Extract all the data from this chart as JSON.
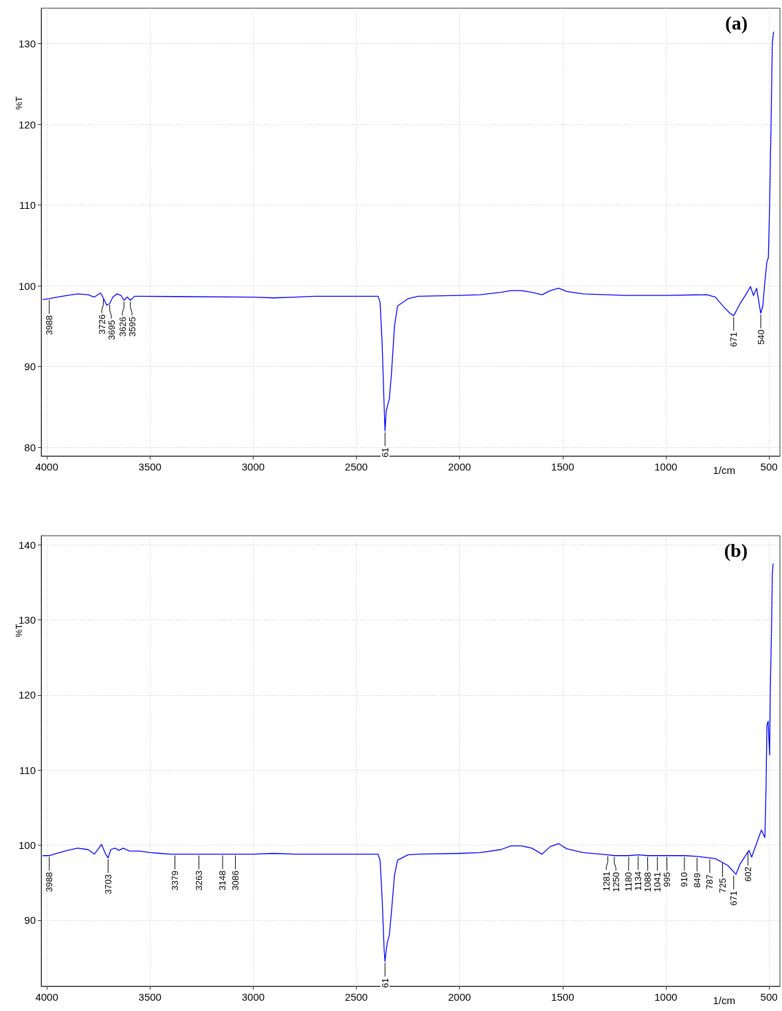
{
  "chart_data": [
    {
      "type": "line",
      "title": "(a)",
      "xlabel": "1/cm",
      "ylabel": "%T",
      "xlim": [
        4027,
        447
      ],
      "ylim": [
        78.9,
        134.4
      ],
      "xticks": [
        4000,
        3500,
        3000,
        2500,
        2000,
        1500,
        1000,
        500
      ],
      "yticks": [
        80,
        90,
        100,
        110,
        120,
        130
      ],
      "grid": true,
      "series": [
        {
          "color": "#0000ff",
          "x": [
            4020,
            3988,
            3950,
            3900,
            3850,
            3800,
            3770,
            3740,
            3726,
            3710,
            3695,
            3680,
            3660,
            3640,
            3626,
            3610,
            3595,
            3575,
            3550,
            3000,
            2900,
            2800,
            2700,
            2600,
            2395,
            2385,
            2375,
            2365,
            2361,
            2355,
            2350,
            2340,
            2330,
            2315,
            2300,
            2250,
            2200,
            2000,
            1900,
            1800,
            1750,
            1700,
            1650,
            1600,
            1560,
            1520,
            1480,
            1400,
            1200,
            1000,
            800,
            760,
            720,
            690,
            671,
            640,
            610,
            590,
            575,
            560,
            548,
            540,
            530,
            520,
            510,
            503,
            497,
            490,
            484,
            478
          ],
          "values": [
            98.3,
            98.4,
            98.6,
            98.8,
            99.0,
            98.9,
            98.6,
            99.1,
            98.5,
            97.6,
            97.8,
            98.6,
            99.0,
            98.8,
            98.2,
            98.6,
            98.2,
            98.7,
            98.7,
            98.6,
            98.5,
            98.6,
            98.7,
            98.7,
            98.7,
            98.0,
            93.0,
            85.0,
            82.0,
            84.5,
            85.0,
            86.0,
            89.0,
            95.0,
            97.5,
            98.4,
            98.7,
            98.8,
            98.9,
            99.2,
            99.4,
            99.4,
            99.2,
            98.9,
            99.4,
            99.7,
            99.3,
            99.0,
            98.8,
            98.8,
            98.9,
            98.6,
            97.4,
            96.6,
            96.3,
            97.8,
            99.0,
            99.9,
            98.8,
            99.7,
            97.8,
            96.6,
            97.5,
            100.5,
            103.0,
            103.5,
            110.0,
            120.0,
            130.0,
            131.5
          ]
        }
      ],
      "annotations": [
        {
          "text": "3988",
          "x": 3988,
          "y": 98.4
        },
        {
          "text": "3726",
          "x": 3726,
          "y": 98.5
        },
        {
          "text": "3695",
          "x": 3695,
          "y": 97.8
        },
        {
          "text": "3626",
          "x": 3626,
          "y": 98.2
        },
        {
          "text": "3595",
          "x": 3595,
          "y": 98.2
        },
        {
          "text": "61",
          "x": 2361,
          "y": 82.0
        },
        {
          "text": "671",
          "x": 671,
          "y": 96.3
        },
        {
          "text": "540",
          "x": 540,
          "y": 96.6
        }
      ]
    },
    {
      "type": "line",
      "title": "(b)",
      "xlabel": "1/cm",
      "ylabel": "%T",
      "xlim": [
        4027,
        447
      ],
      "ylim": [
        81.2,
        141.2
      ],
      "xticks": [
        4000,
        3500,
        3000,
        2500,
        2000,
        1500,
        1000,
        500
      ],
      "yticks": [
        90,
        100,
        110,
        120,
        130,
        140
      ],
      "grid": true,
      "series": [
        {
          "color": "#0000ff",
          "x": [
            4020,
            3988,
            3950,
            3900,
            3850,
            3800,
            3770,
            3750,
            3735,
            3715,
            3703,
            3690,
            3670,
            3650,
            3630,
            3600,
            3550,
            3500,
            3450,
            3400,
            3000,
            2900,
            2800,
            2395,
            2385,
            2375,
            2365,
            2361,
            2355,
            2350,
            2340,
            2330,
            2315,
            2300,
            2250,
            2200,
            2000,
            1900,
            1800,
            1750,
            1700,
            1650,
            1600,
            1560,
            1520,
            1480,
            1400,
            1281,
            1250,
            1180,
            1134,
            1088,
            1041,
            995,
            910,
            849,
            787,
            760,
            700,
            660,
            640,
            597,
            584,
            537,
            520,
            514,
            510,
            504,
            497,
            494,
            487,
            484,
            480
          ],
          "values": [
            98.6,
            98.6,
            98.9,
            99.3,
            99.6,
            99.4,
            98.8,
            99.5,
            100.1,
            98.8,
            98.3,
            99.4,
            99.6,
            99.3,
            99.6,
            99.2,
            99.2,
            99.0,
            98.9,
            98.8,
            98.8,
            98.9,
            98.8,
            98.8,
            98.0,
            93.0,
            86.0,
            84.5,
            86.0,
            87.0,
            88.0,
            91.0,
            96.0,
            98.0,
            98.7,
            98.8,
            98.9,
            99.0,
            99.4,
            99.9,
            99.9,
            99.6,
            98.8,
            99.8,
            100.2,
            99.5,
            99.0,
            98.7,
            98.6,
            98.6,
            98.7,
            98.6,
            98.6,
            98.6,
            98.6,
            98.5,
            98.3,
            98.2,
            97.3,
            96.1,
            97.5,
            99.3,
            98.4,
            102.0,
            101.0,
            108.0,
            116.0,
            116.5,
            112.0,
            120.0,
            130.0,
            136.0,
            137.5
          ]
        }
      ],
      "annotations": [
        {
          "text": "3988",
          "x": 3988,
          "y": 98.6
        },
        {
          "text": "3703",
          "x": 3703,
          "y": 98.3
        },
        {
          "text": "3379",
          "x": 3379,
          "y": 98.8
        },
        {
          "text": "3263",
          "x": 3263,
          "y": 98.8
        },
        {
          "text": "3148",
          "x": 3148,
          "y": 98.8
        },
        {
          "text": "3086",
          "x": 3086,
          "y": 98.8
        },
        {
          "text": "61",
          "x": 2361,
          "y": 84.5
        },
        {
          "text": "1281",
          "x": 1281,
          "y": 98.7
        },
        {
          "text": "1250",
          "x": 1250,
          "y": 98.6
        },
        {
          "text": "1180",
          "x": 1180,
          "y": 98.6
        },
        {
          "text": "1134",
          "x": 1134,
          "y": 98.7
        },
        {
          "text": "1088",
          "x": 1088,
          "y": 98.6
        },
        {
          "text": "1041",
          "x": 1041,
          "y": 98.6
        },
        {
          "text": "995",
          "x": 995,
          "y": 98.6
        },
        {
          "text": "910",
          "x": 910,
          "y": 98.6
        },
        {
          "text": "849",
          "x": 849,
          "y": 98.5
        },
        {
          "text": "787",
          "x": 787,
          "y": 98.3
        },
        {
          "text": "725",
          "x": 725,
          "y": 97.8
        },
        {
          "text": "671",
          "x": 671,
          "y": 96.1
        },
        {
          "text": "602",
          "x": 602,
          "y": 99.3
        }
      ]
    }
  ]
}
